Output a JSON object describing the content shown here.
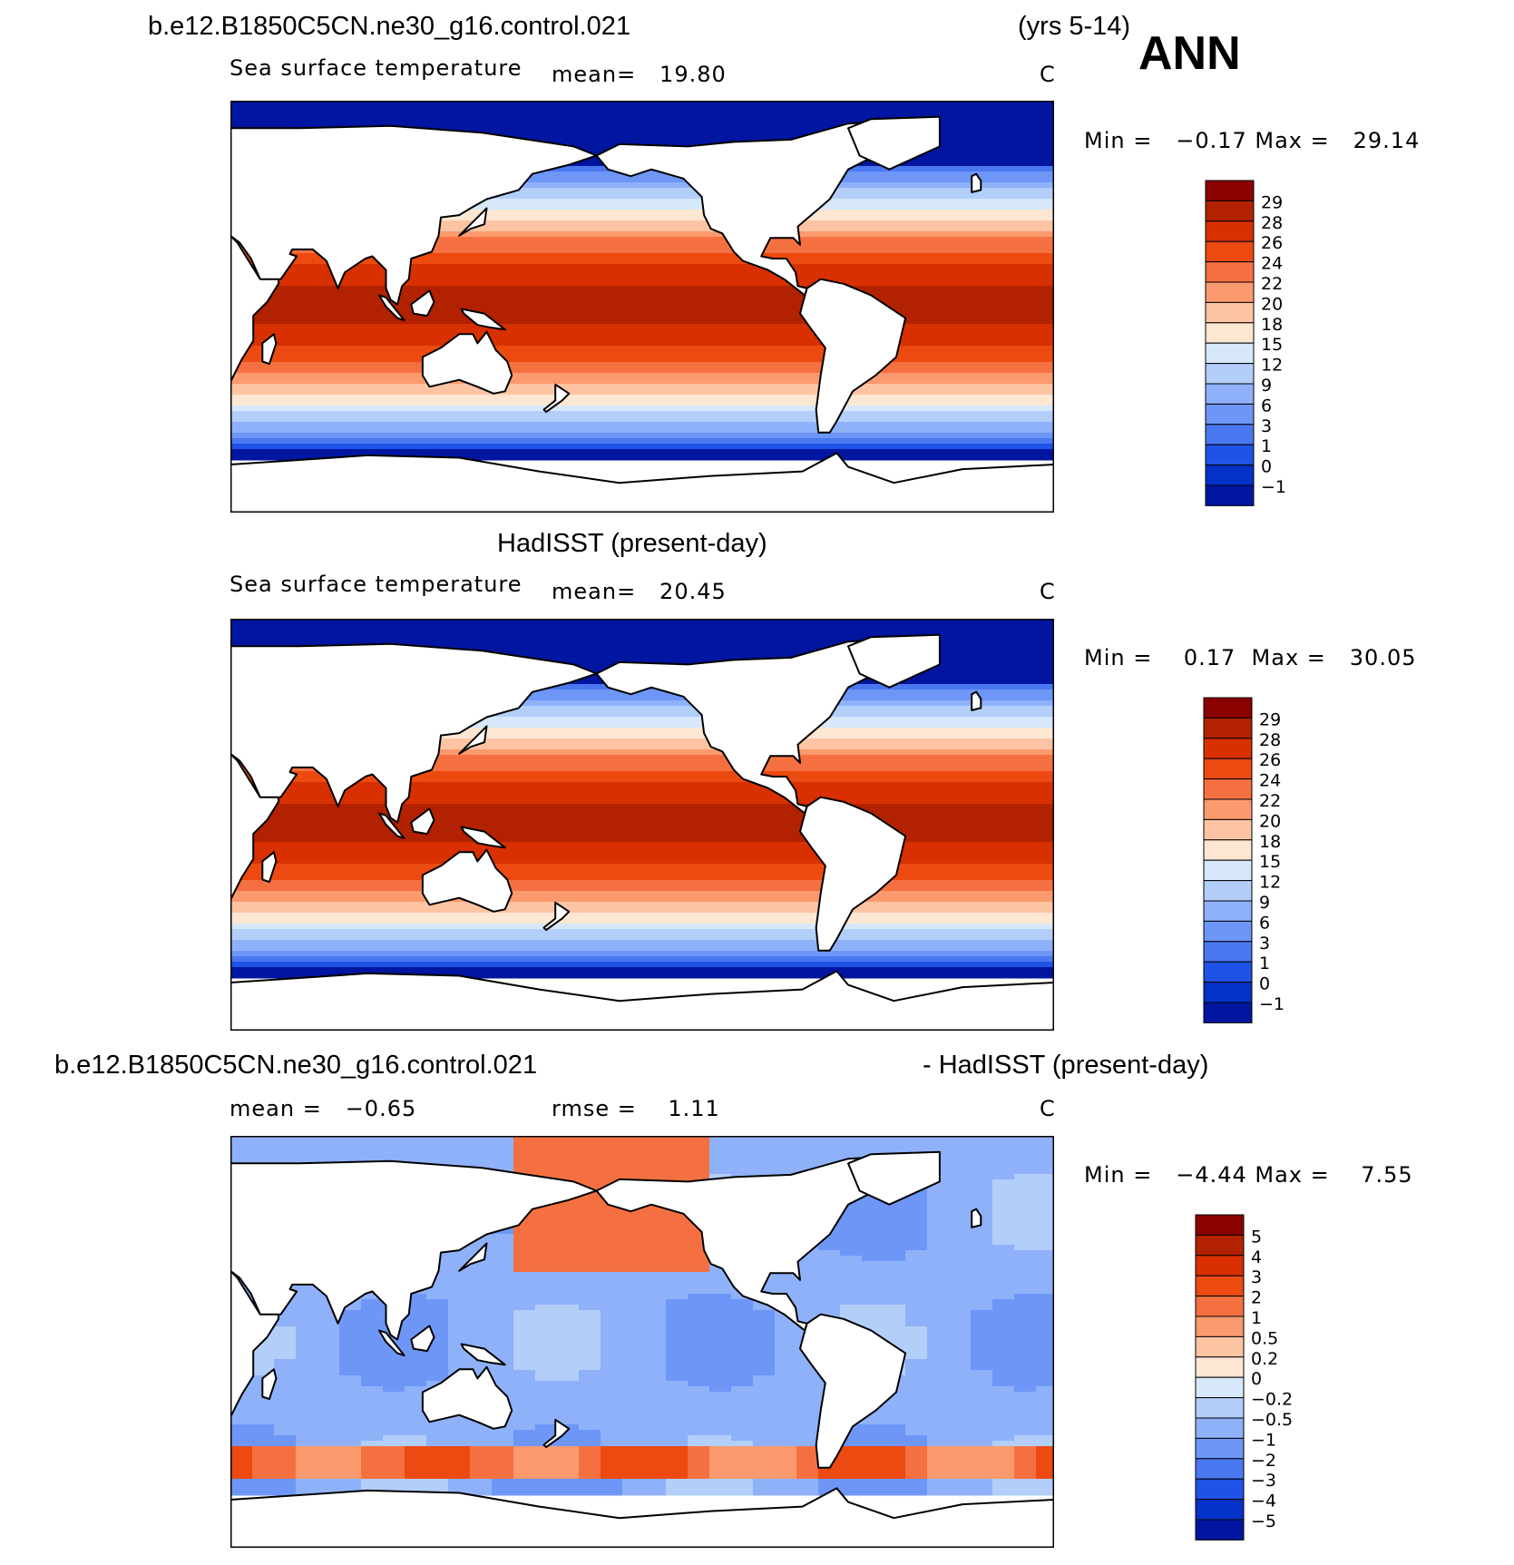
{
  "header": {
    "case_name": "b.e12.B1850C5CN.ne30_g16.control.021",
    "years": "(yrs 5-14)",
    "season": "ANN"
  },
  "panels": [
    {
      "title": "",
      "field": "Sea surface temperature",
      "stat": "mean=   19.80",
      "units": "C",
      "minmax": "Min =   −0.17 Max =   29.14",
      "colorbar_labels": [
        "29",
        "28",
        "26",
        "24",
        "22",
        "20",
        "18",
        "15",
        "12",
        "9",
        "6",
        "3",
        "1",
        "0",
        "−1"
      ],
      "colors": [
        "#8b0000",
        "#b22200",
        "#d83000",
        "#ec4a10",
        "#f57040",
        "#fb9a6e",
        "#fdc4a4",
        "#fde6d2",
        "#d6e8fa",
        "#b2cef9",
        "#8eb1fa",
        "#6d96f7",
        "#4a78f0",
        "#1f52e6",
        "#0432c8",
        "#0016a0"
      ]
    },
    {
      "title": "HadISST (present-day)",
      "field": "Sea surface temperature",
      "stat": "mean=   20.45",
      "units": "C",
      "minmax": "Min =    0.17  Max =   30.05",
      "colorbar_labels": [
        "29",
        "28",
        "26",
        "24",
        "22",
        "20",
        "18",
        "15",
        "12",
        "9",
        "6",
        "3",
        "1",
        "0",
        "−1"
      ],
      "colors": [
        "#8b0000",
        "#b22200",
        "#d83000",
        "#ec4a10",
        "#f57040",
        "#fb9a6e",
        "#fdc4a4",
        "#fde6d2",
        "#d6e8fa",
        "#b2cef9",
        "#8eb1fa",
        "#6d96f7",
        "#4a78f0",
        "#1f52e6",
        "#0432c8",
        "#0016a0"
      ]
    },
    {
      "title_left": "b.e12.B1850C5CN.ne30_g16.control.021",
      "title_right": "- HadISST (present-day)",
      "stat_left": "mean =   −0.65",
      "stat_right": "rmse =    1.11",
      "units": "C",
      "minmax": "Min =   −4.44 Max =    7.55",
      "colorbar_labels": [
        "5",
        "4",
        "3",
        "2",
        "1",
        "0.5",
        "0.2",
        "0",
        "−0.2",
        "−0.5",
        "−1",
        "−2",
        "−3",
        "−4",
        "−5"
      ],
      "colors": [
        "#8b0000",
        "#b22200",
        "#d83000",
        "#ec4a10",
        "#f57040",
        "#fb9a6e",
        "#fdc4a4",
        "#fde6d2",
        "#d6e8fa",
        "#b2cef9",
        "#8eb1fa",
        "#6d96f7",
        "#4a78f0",
        "#1f52e6",
        "#0432c8",
        "#0016a0"
      ]
    }
  ]
}
